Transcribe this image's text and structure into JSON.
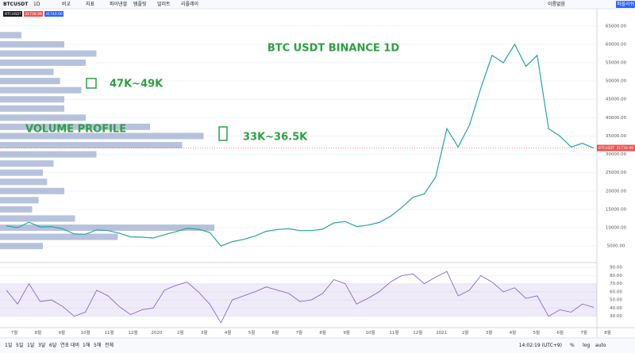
{
  "toolbar": {
    "symbol": "BTCUSDT",
    "interval": "1D",
    "buttons": [
      "비교",
      "지표",
      "파이낸셜",
      "템플릿",
      "얼러트",
      "리플레이"
    ],
    "layout_name": "이름없음",
    "publish": "퍼블리쉬"
  },
  "legend": {
    "symbol": "BTCUSDT",
    "bid": 31739.99,
    "ask": {
      "value": 31740,
      "label": "31740.00"
    }
  },
  "chart_data": [
    {
      "type": "line",
      "title": "BTC USDT BINANCE 1D",
      "annotations": [
        "47K~49K",
        "33K~36.5K",
        "VOLUME PROFILE"
      ],
      "price_tag": {
        "symbol": "BTCUSDT",
        "value": 31739.99
      },
      "color": "#26a69a",
      "values": [
        10500,
        10000,
        11500,
        10200,
        10300,
        9700,
        8300,
        8200,
        9400,
        9200,
        8500,
        7500,
        7400,
        7200,
        8100,
        8900,
        9800,
        9600,
        8700,
        5000,
        6200,
        6800,
        7700,
        9000,
        9500,
        9700,
        9200,
        9200,
        9600,
        11300,
        11700,
        10300,
        10700,
        11400,
        13100,
        15500,
        18300,
        19200,
        23800,
        37000,
        32000,
        38000,
        48000,
        57000,
        55000,
        60000,
        54000,
        57000,
        37000,
        35000,
        32000,
        33000,
        31700
      ],
      "ylim": [
        700,
        69500
      ],
      "yticks": [
        {
          "value": 5000,
          "label": "5000.00"
        },
        {
          "value": 10000,
          "label": "10000.00"
        },
        {
          "value": 15000,
          "label": "15000.00"
        },
        {
          "value": 20000,
          "label": "20000.00"
        },
        {
          "value": 25000,
          "label": "25000.00"
        },
        {
          "value": 30000,
          "label": "30000.00"
        },
        {
          "value": 35000,
          "label": "35000.00"
        },
        {
          "value": 40000,
          "label": "40000.00"
        },
        {
          "value": 45000,
          "label": "45000.00"
        },
        {
          "value": 50000,
          "label": "50000.00"
        },
        {
          "value": 55000,
          "label": "55000.00"
        },
        {
          "value": 60000,
          "label": "60000.00"
        },
        {
          "value": 65000,
          "label": "65000.00"
        }
      ],
      "volume_profile": {
        "color": "#7b8fbf",
        "levels": [
          5000,
          7500,
          10000,
          12500,
          15000,
          17500,
          20000,
          22500,
          25000,
          27500,
          30000,
          32500,
          35000,
          37500,
          40000,
          42500,
          45000,
          47500,
          50000,
          52500,
          55000,
          57500,
          60000,
          62500
        ],
        "values": [
          20,
          55,
          100,
          35,
          15,
          18,
          30,
          22,
          20,
          25,
          45,
          85,
          95,
          70,
          40,
          30,
          30,
          38,
          28,
          25,
          40,
          45,
          30,
          10
        ]
      },
      "x_axis_labels": [
        "7월",
        "8월",
        "9월",
        "10월",
        "11월",
        "12월",
        "2020",
        "2월",
        "3월",
        "4월",
        "5월",
        "6월",
        "7월",
        "8월",
        "9월",
        "10월",
        "11월",
        "12월",
        "2021",
        "2월",
        "3월",
        "4월",
        "5월",
        "6월",
        "7월",
        "8월"
      ]
    },
    {
      "type": "rsi",
      "color": "#7e57c2",
      "band": [
        30,
        70
      ],
      "values": [
        62,
        45,
        70,
        48,
        50,
        42,
        30,
        35,
        62,
        55,
        42,
        32,
        38,
        40,
        62,
        68,
        72,
        60,
        45,
        22,
        50,
        55,
        60,
        66,
        62,
        58,
        48,
        50,
        58,
        75,
        70,
        45,
        52,
        60,
        72,
        80,
        82,
        70,
        78,
        85,
        55,
        62,
        80,
        72,
        60,
        65,
        52,
        55,
        30,
        38,
        35,
        45,
        41
      ],
      "ylim": [
        17,
        94
      ],
      "yticks": [
        {
          "value": 30,
          "label": "30.00"
        },
        {
          "value": 40,
          "label": "40.00"
        },
        {
          "value": 50,
          "label": "50.00"
        },
        {
          "value": 60,
          "label": "60.00"
        },
        {
          "value": 70,
          "label": "70.00"
        },
        {
          "value": 80,
          "label": "80.00"
        },
        {
          "value": 90,
          "label": "90.00"
        }
      ]
    }
  ],
  "bottom_bar": {
    "ranges": [
      "1일",
      "5일",
      "1달",
      "3달",
      "6달",
      "연초 대비",
      "1해",
      "5해",
      "전체"
    ],
    "clock": "14:02:19 (UTC+9)",
    "options": [
      "%",
      "log",
      "auto"
    ]
  }
}
